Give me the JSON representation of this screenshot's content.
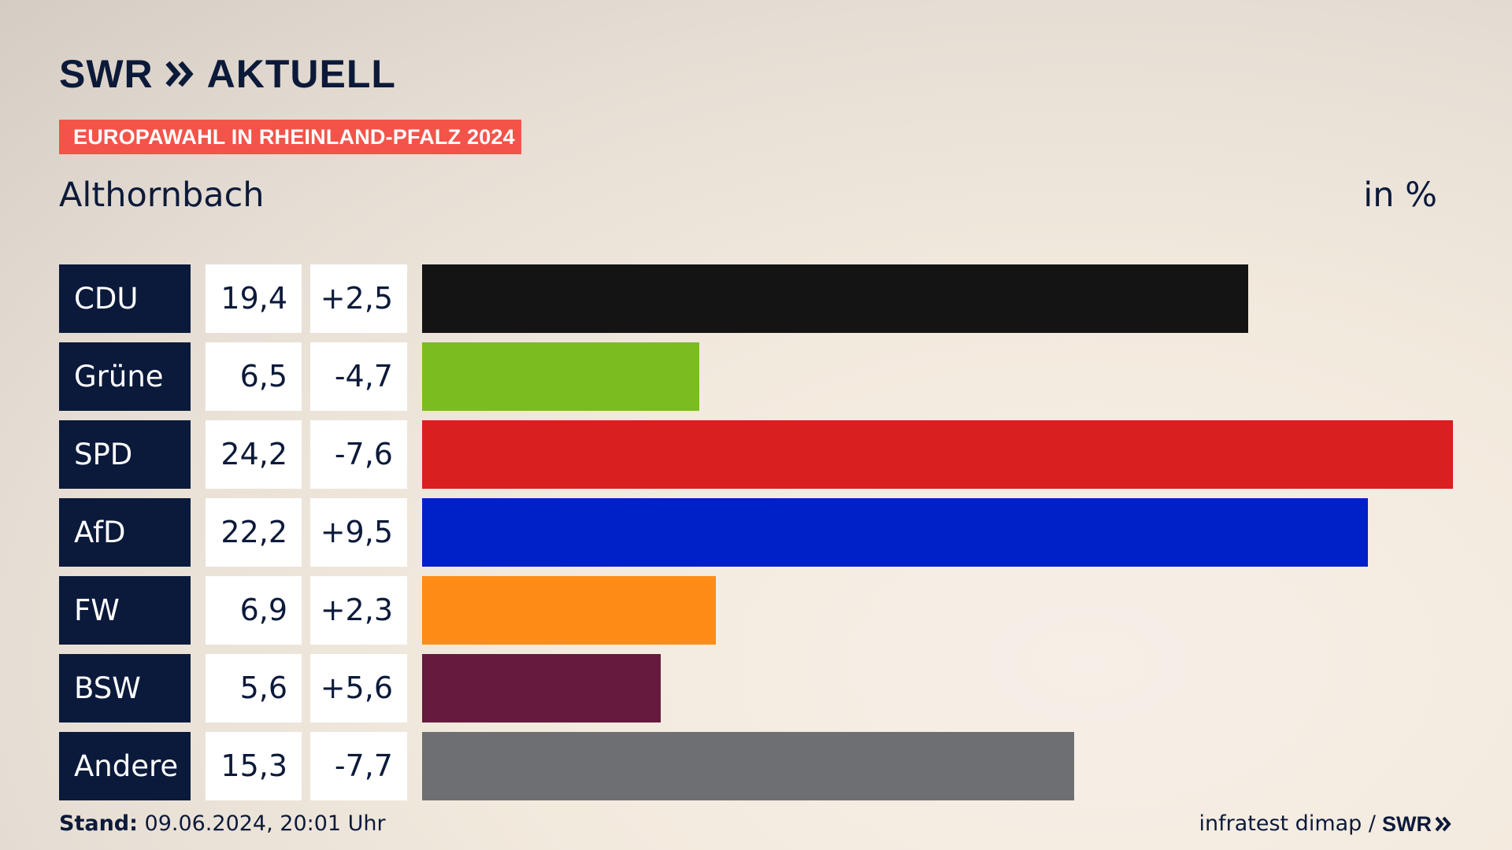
{
  "header": {
    "logo_left": "SWR",
    "logo_right": "AKTUELL",
    "banner": "EUROPAWAHL IN RHEINLAND-PFALZ 2024"
  },
  "chart_data": {
    "type": "bar",
    "title": "Althornbach",
    "unit": "in %",
    "categories": [
      "CDU",
      "Grüne",
      "SPD",
      "AfD",
      "FW",
      "BSW",
      "Andere"
    ],
    "values": [
      19.4,
      6.5,
      24.2,
      22.2,
      6.9,
      5.6,
      15.3
    ],
    "value_labels": [
      "19,4",
      "6,5",
      "24,2",
      "22,2",
      "6,9",
      "5,6",
      "15,3"
    ],
    "diff_labels": [
      "+2,5",
      "-4,7",
      "-7,6",
      "+9,5",
      "+2,3",
      "+5,6",
      "-7,7"
    ],
    "colors": [
      "#141414",
      "#7bbd1e",
      "#d91f1f",
      "#0020c8",
      "#ff8c16",
      "#661a3e",
      "#6e6f72"
    ],
    "xlim": [
      0,
      24.2
    ]
  },
  "footer": {
    "stand_label": "Stand:",
    "stand_value": "09.06.2024, 20:01 Uhr",
    "source": "infratest dimap /",
    "source_logo": "SWR"
  }
}
